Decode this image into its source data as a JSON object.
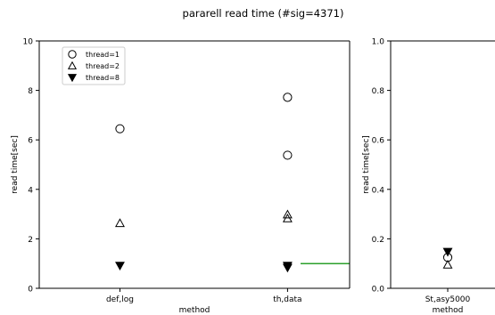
{
  "figure": {
    "title": "pararell read time (#sig=4371)"
  },
  "chart_data": [
    {
      "type": "scatter",
      "xlabel": "method",
      "ylabel": "read time[sec]",
      "categories": [
        "def,log",
        "th,data"
      ],
      "ylim": [
        0,
        10
      ],
      "yticks": [
        "0",
        "2",
        "4",
        "6",
        "8",
        "10"
      ],
      "legend": {
        "placement": "top-left"
      },
      "series": [
        {
          "name": "thread=1",
          "marker": "circle",
          "points": [
            {
              "x": 0,
              "y": 6.45
            },
            {
              "x": 1,
              "y": 7.72
            },
            {
              "x": 1,
              "y": 5.38
            }
          ]
        },
        {
          "name": "thread=2",
          "marker": "triangle-up",
          "points": [
            {
              "x": 0,
              "y": 2.63
            },
            {
              "x": 1,
              "y": 2.98
            },
            {
              "x": 1,
              "y": 2.82
            }
          ]
        },
        {
          "name": "thread=8",
          "marker": "triangle-down",
          "points": [
            {
              "x": 0,
              "y": 0.92
            },
            {
              "x": 1,
              "y": 0.92
            },
            {
              "x": 1,
              "y": 0.84
            }
          ]
        }
      ],
      "reference_line": {
        "y": 1.0,
        "color": "#2ca02c"
      }
    },
    {
      "type": "scatter",
      "xlabel": "method",
      "ylabel": "read time[sec]",
      "categories": [
        "St,asy5000"
      ],
      "ylim": [
        0,
        1.0
      ],
      "yticks": [
        "0.0",
        "0.2",
        "0.4",
        "0.6",
        "0.8",
        "1.0"
      ],
      "series": [
        {
          "marker": "circle",
          "points": [
            {
              "x": 0,
              "y": 0.125
            }
          ]
        },
        {
          "marker": "triangle-up",
          "points": [
            {
              "x": 0,
              "y": 0.095
            }
          ]
        },
        {
          "marker": "triangle-down",
          "points": [
            {
              "x": 0,
              "y": 0.148
            }
          ]
        }
      ]
    }
  ]
}
